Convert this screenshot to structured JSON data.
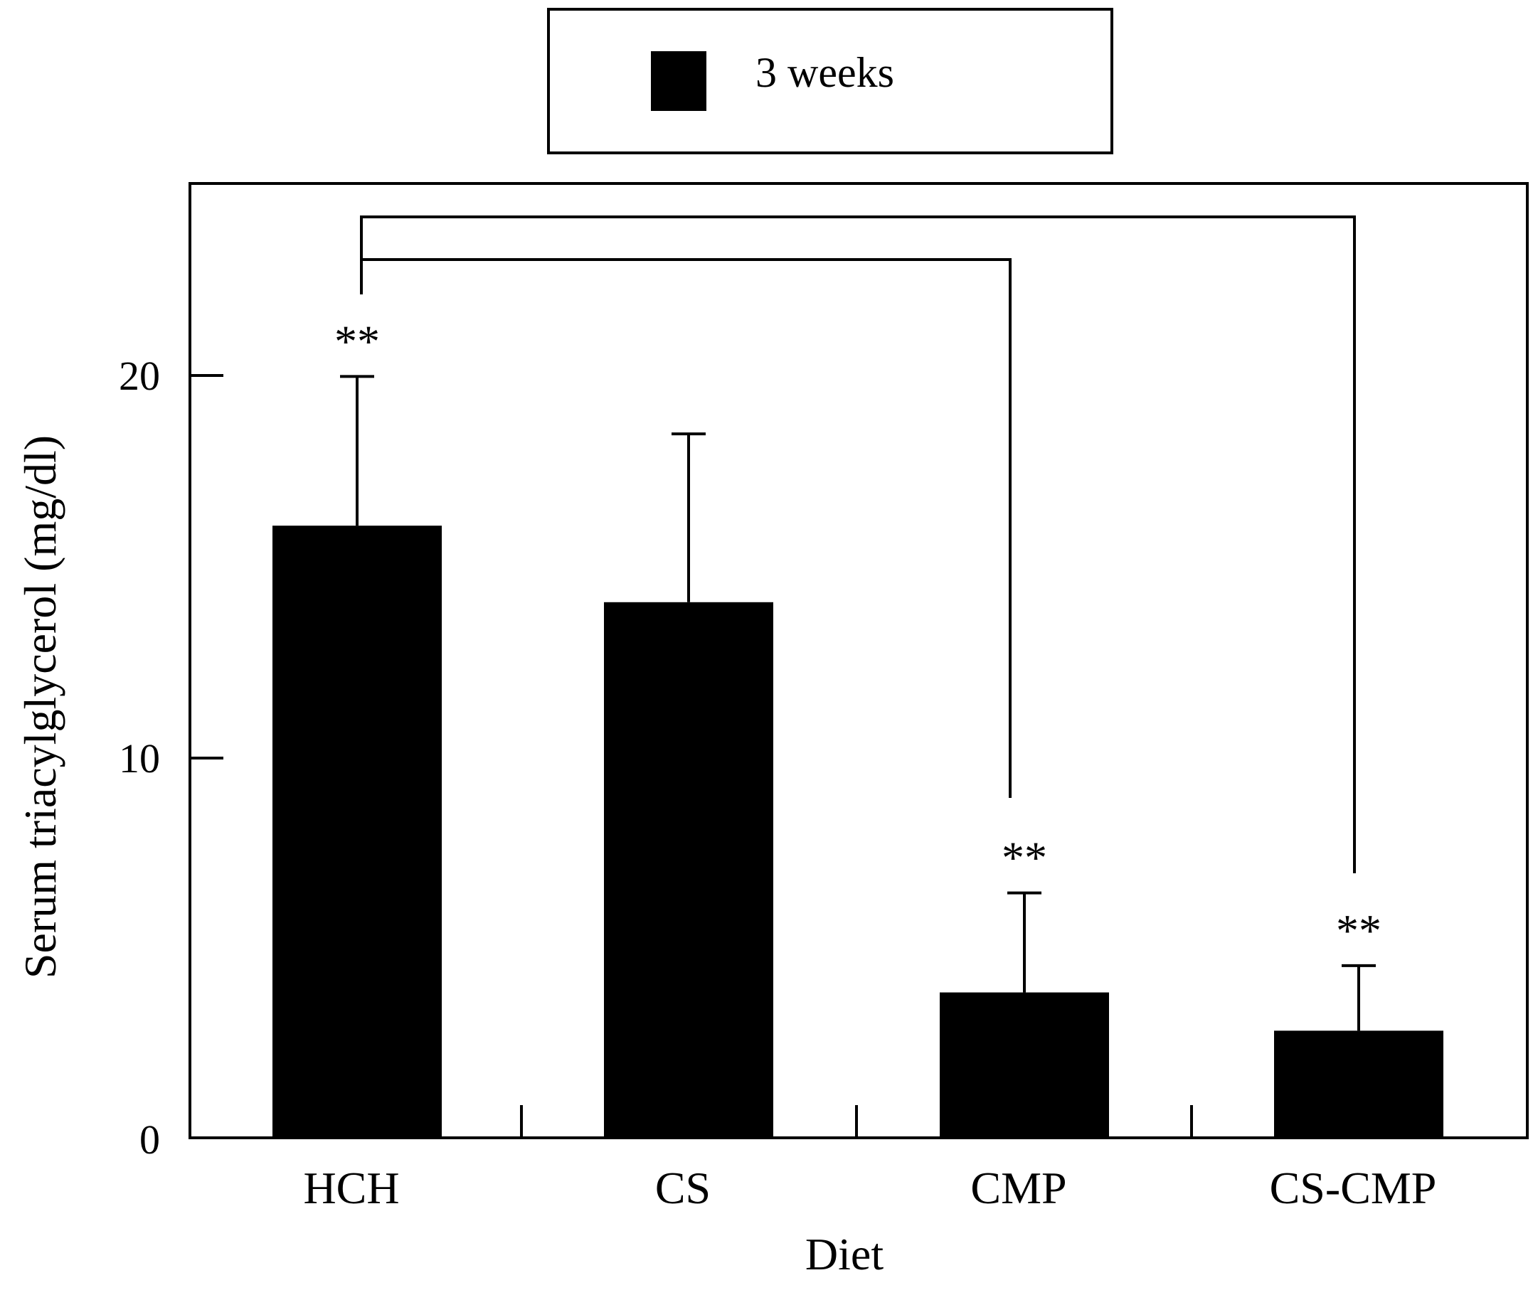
{
  "chart_data": {
    "type": "bar",
    "xlabel": "Diet",
    "ylabel": "Serum triacylglycerol (mg/dl)",
    "ylim": [
      0,
      25
    ],
    "yticks": [
      0,
      10,
      20
    ],
    "categories": [
      "HCH",
      "CS",
      "CMP",
      "CS-CMP"
    ],
    "series": [
      {
        "name": "3 weeks",
        "color": "#000000",
        "values": [
          16.0,
          14.0,
          3.8,
          2.8
        ],
        "errors": [
          3.9,
          4.4,
          2.6,
          1.7
        ]
      }
    ],
    "legend": {
      "position": "top-center",
      "entries": [
        "3 weeks"
      ]
    },
    "significance": {
      "markers": [
        {
          "category": "HCH",
          "label": "**"
        },
        {
          "category": "CMP",
          "label": "**"
        },
        {
          "category": "CS-CMP",
          "label": "**"
        }
      ],
      "brackets": [
        {
          "from": "HCH",
          "to": "CMP"
        },
        {
          "from": "HCH",
          "to": "CS-CMP"
        }
      ]
    }
  }
}
